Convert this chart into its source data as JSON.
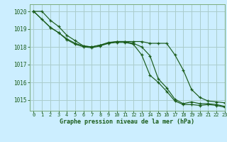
{
  "background_color": "#cceeff",
  "grid_color": "#aacccc",
  "line_color": "#1a5c1a",
  "text_color": "#1a5c1a",
  "xlabel": "Graphe pression niveau de la mer (hPa)",
  "ylim": [
    1014.4,
    1020.4
  ],
  "xlim": [
    -0.5,
    23
  ],
  "yticks": [
    1015,
    1016,
    1017,
    1018,
    1019,
    1020
  ],
  "xticks": [
    0,
    1,
    2,
    3,
    4,
    5,
    6,
    7,
    8,
    9,
    10,
    11,
    12,
    13,
    14,
    15,
    16,
    17,
    18,
    19,
    20,
    21,
    22,
    23
  ],
  "series": [
    {
      "x": [
        0,
        1,
        2,
        3,
        4,
        5,
        6,
        7,
        8,
        9,
        10,
        11,
        12,
        13,
        14,
        15,
        16,
        17,
        18,
        19,
        20,
        21,
        22,
        23
      ],
      "y": [
        1020.0,
        1020.0,
        1019.5,
        1019.15,
        1018.65,
        1018.35,
        1018.05,
        1018.0,
        1018.1,
        1018.2,
        1018.3,
        1018.3,
        1018.2,
        1018.0,
        1017.5,
        1016.2,
        1015.7,
        1015.05,
        1014.8,
        1014.9,
        1014.8,
        1014.8,
        1014.75,
        1014.65
      ]
    },
    {
      "x": [
        0,
        1,
        2,
        3,
        4,
        5,
        6,
        7,
        8,
        9,
        10,
        11,
        12,
        13,
        14,
        15,
        16,
        17,
        18,
        19,
        20,
        21,
        22,
        23
      ],
      "y": [
        1020.0,
        1019.55,
        1019.1,
        1018.8,
        1018.4,
        1018.15,
        1018.0,
        1017.95,
        1018.05,
        1018.2,
        1018.25,
        1018.25,
        1018.15,
        1017.55,
        1016.4,
        1016.0,
        1015.5,
        1014.95,
        1014.75,
        1014.75,
        1014.7,
        1014.75,
        1014.7,
        1014.6
      ]
    },
    {
      "x": [
        0,
        2,
        3,
        4,
        5,
        6,
        7,
        8,
        9,
        10,
        11,
        12,
        13,
        14,
        15,
        16,
        17,
        18,
        19,
        20,
        21,
        22,
        23
      ],
      "y": [
        1020.0,
        1019.1,
        1018.8,
        1018.45,
        1018.2,
        1018.05,
        1018.0,
        1018.1,
        1018.25,
        1018.3,
        1018.3,
        1018.3,
        1018.3,
        1018.2,
        1018.2,
        1018.2,
        1017.55,
        1016.7,
        1015.6,
        1015.15,
        1014.95,
        1014.9,
        1014.85
      ]
    }
  ]
}
